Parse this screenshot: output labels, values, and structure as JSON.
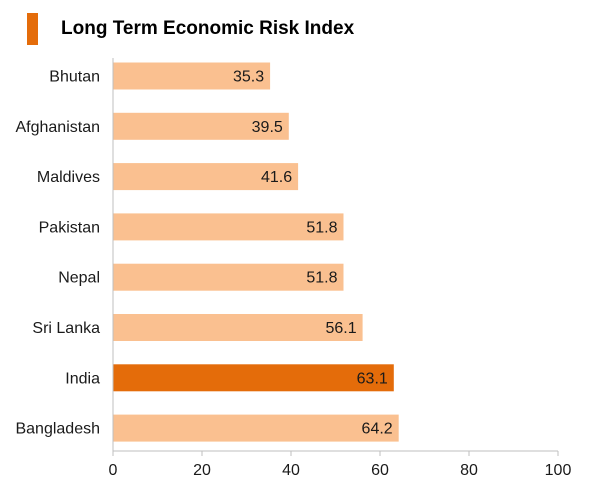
{
  "chart_data": {
    "type": "bar",
    "orientation": "horizontal",
    "title": "Long Term Economic Risk Index",
    "categories": [
      "Bhutan",
      "Afghanistan",
      "Maldives",
      "Pakistan",
      "Nepal",
      "Sri Lanka",
      "India",
      "Bangladesh"
    ],
    "values": [
      35.3,
      39.5,
      41.6,
      51.8,
      51.8,
      56.1,
      63.1,
      64.2
    ],
    "highlight": "India",
    "xlim": [
      0,
      100
    ],
    "xticks": [
      0,
      20,
      40,
      60,
      80,
      100
    ],
    "xlabel": "",
    "ylabel": "",
    "grid": false,
    "colors": {
      "bar": "#fac090",
      "highlight": "#e46c0a",
      "title_marker": "#e46c0a",
      "axis": "#bfbfbf"
    }
  }
}
